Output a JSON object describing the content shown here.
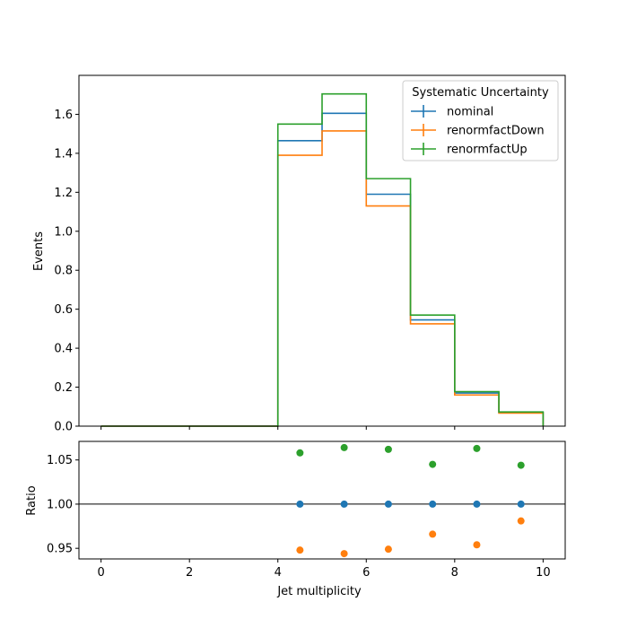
{
  "chart_data": [
    {
      "type": "line",
      "style": "step-histogram",
      "bin_edges": [
        0,
        1,
        2,
        3,
        4,
        5,
        6,
        7,
        8,
        9,
        10
      ],
      "series": [
        {
          "name": "nominal",
          "color": "#1f77b4",
          "values": [
            0,
            0,
            0,
            0,
            1.465,
            1.605,
            1.19,
            0.545,
            0.17,
            0.07
          ]
        },
        {
          "name": "renormfactDown",
          "color": "#ff7f0e",
          "values": [
            0,
            0,
            0,
            0,
            1.39,
            1.515,
            1.13,
            0.525,
            0.16,
            0.067
          ]
        },
        {
          "name": "renormfactUp",
          "color": "#2ca02c",
          "values": [
            0,
            0,
            0,
            0,
            1.55,
            1.705,
            1.27,
            0.57,
            0.177,
            0.073
          ]
        }
      ],
      "ylabel": "Events",
      "xlim": [
        -0.5,
        10.5
      ],
      "ylim": [
        0,
        1.8
      ],
      "yticks": [
        "0.0",
        "0.2",
        "0.4",
        "0.6",
        "0.8",
        "1.0",
        "1.2",
        "1.4",
        "1.6"
      ],
      "legend": {
        "title": "Systematic Uncertainty",
        "placement": "top-right"
      }
    },
    {
      "type": "scatter",
      "x": [
        4.5,
        5.5,
        6.5,
        7.5,
        8.5,
        9.5
      ],
      "series": [
        {
          "name": "nominal",
          "color": "#1f77b4",
          "values": [
            1.0,
            1.0,
            1.0,
            1.0,
            1.0,
            1.0
          ]
        },
        {
          "name": "renormfactDown",
          "color": "#ff7f0e",
          "values": [
            0.948,
            0.944,
            0.949,
            0.966,
            0.954,
            0.981
          ]
        },
        {
          "name": "renormfactUp",
          "color": "#2ca02c",
          "values": [
            1.058,
            1.064,
            1.062,
            1.045,
            1.063,
            1.044
          ]
        }
      ],
      "reference_line": 1.0,
      "xlabel": "Jet multiplicity",
      "ylabel": "Ratio",
      "xlim": [
        -0.5,
        10.5
      ],
      "ylim": [
        0.938,
        1.071
      ],
      "xticks": [
        "0",
        "2",
        "4",
        "6",
        "8",
        "10"
      ],
      "yticks": [
        "0.95",
        "1.00",
        "1.05"
      ]
    }
  ]
}
